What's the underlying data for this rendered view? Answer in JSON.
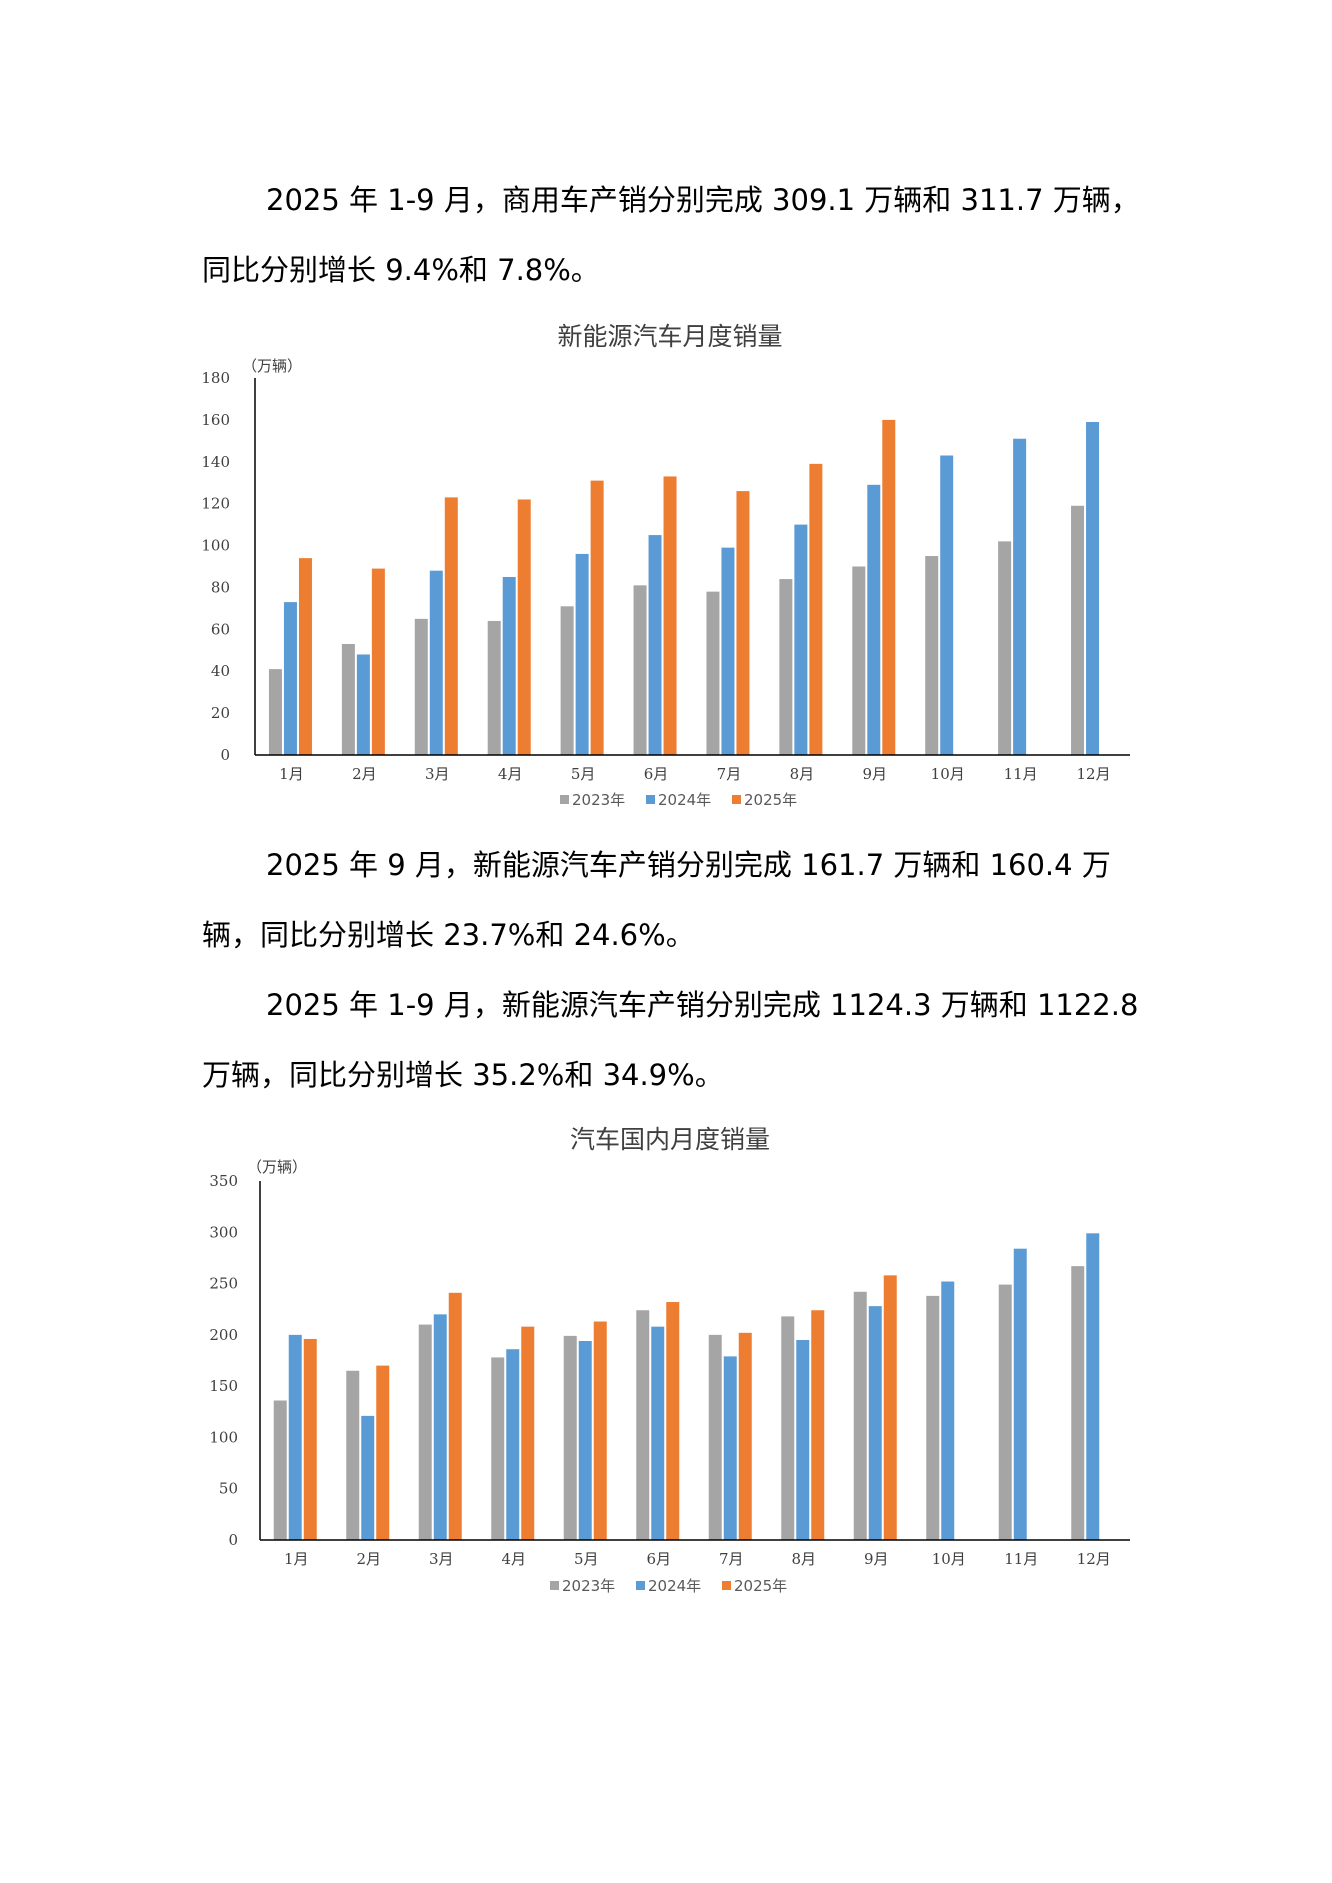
{
  "paragraphs": [
    {
      "lines": [
        "2025 年 1-9 月，商用车产销分别完成 309.1 万辆和 311.7 万辆，",
        "同比分别增长 9.4%和 7.8%。"
      ]
    },
    {
      "lines": [
        "2025 年 9 月，新能源汽车产销分别完成 161.7 万辆和 160.4 万",
        "辆，同比分别增长 23.7%和 24.6%。"
      ]
    },
    {
      "lines": [
        "2025 年 1-9 月，新能源汽车产销分别完成 1124.3 万辆和 1122.8",
        "万辆，同比分别增长 35.2%和 34.9%。"
      ]
    }
  ],
  "colors": {
    "s2023": "#a5a5a5",
    "s2024": "#5b9bd5",
    "s2025": "#ed7d31",
    "axis": "#000000"
  },
  "chart_data": [
    {
      "type": "bar",
      "title": "新能源汽车月度销量",
      "unit": "（万辆）",
      "ylim": [
        0,
        180
      ],
      "yticks": [
        0,
        20,
        40,
        60,
        80,
        100,
        120,
        140,
        160,
        180
      ],
      "categories": [
        "1月",
        "2月",
        "3月",
        "4月",
        "5月",
        "6月",
        "7月",
        "8月",
        "9月",
        "10月",
        "11月",
        "12月"
      ],
      "series": [
        {
          "name": "2023年",
          "values": [
            41,
            53,
            65,
            64,
            71,
            81,
            78,
            84,
            90,
            95,
            102,
            119
          ]
        },
        {
          "name": "2024年",
          "values": [
            73,
            48,
            88,
            85,
            96,
            105,
            99,
            110,
            129,
            143,
            151,
            159
          ]
        },
        {
          "name": "2025年",
          "values": [
            94,
            89,
            123,
            122,
            131,
            133,
            126,
            139,
            160,
            null,
            null,
            null
          ]
        }
      ],
      "legend": "bottom"
    },
    {
      "type": "bar",
      "title": "汽车国内月度销量",
      "unit": "（万辆）",
      "ylim": [
        0,
        350
      ],
      "yticks": [
        0,
        50,
        100,
        150,
        200,
        250,
        300,
        350
      ],
      "categories": [
        "1月",
        "2月",
        "3月",
        "4月",
        "5月",
        "6月",
        "7月",
        "8月",
        "9月",
        "10月",
        "11月",
        "12月"
      ],
      "series": [
        {
          "name": "2023年",
          "values": [
            136,
            165,
            210,
            178,
            199,
            224,
            200,
            218,
            242,
            238,
            249,
            267
          ]
        },
        {
          "name": "2024年",
          "values": [
            200,
            121,
            220,
            186,
            194,
            208,
            179,
            195,
            228,
            252,
            284,
            299
          ]
        },
        {
          "name": "2025年",
          "values": [
            196,
            170,
            241,
            208,
            213,
            232,
            202,
            224,
            258,
            null,
            null,
            null
          ]
        }
      ],
      "legend": "bottom"
    }
  ]
}
